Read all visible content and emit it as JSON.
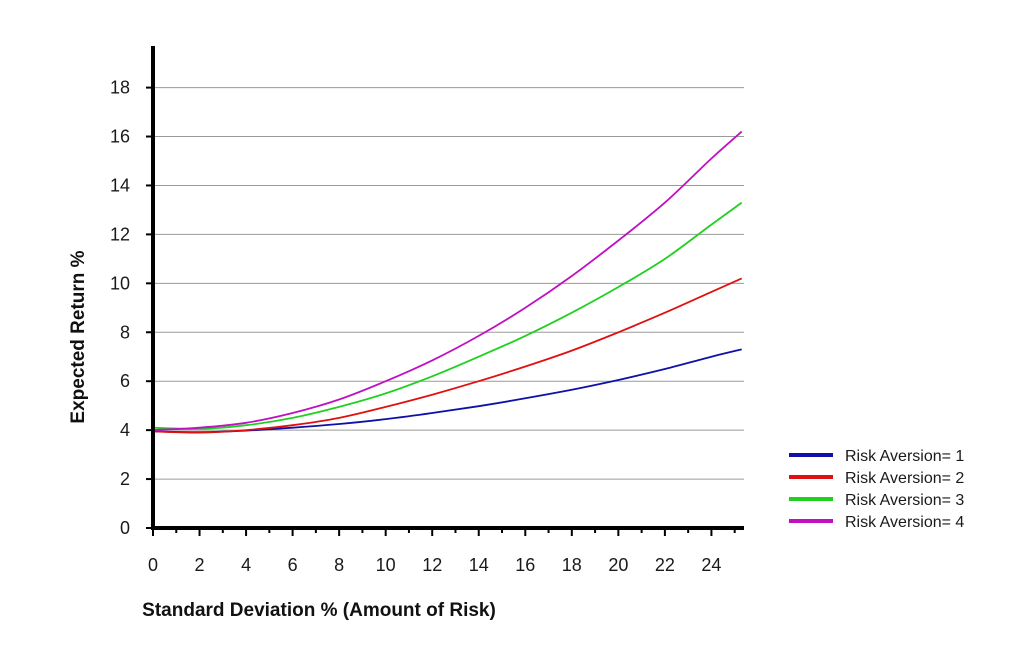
{
  "chart_data": {
    "type": "line",
    "title": "",
    "xlabel": "Standard Deviation % (Amount of Risk)",
    "ylabel": "Expected Return %",
    "xlim": [
      0,
      25.4
    ],
    "ylim": [
      0,
      19.7
    ],
    "xticks": [
      0,
      2,
      4,
      6,
      8,
      10,
      12,
      14,
      16,
      18,
      20,
      22,
      24
    ],
    "yticks": [
      0,
      2,
      4,
      6,
      8,
      10,
      12,
      14,
      16,
      18
    ],
    "grid": "horizontal",
    "legend_position": "right",
    "series": [
      {
        "name": "Risk Aversion= 1",
        "color": "#1010a8",
        "x": [
          0,
          2,
          4,
          6,
          8,
          10,
          12,
          14,
          16,
          18,
          20,
          22,
          24,
          25.3
        ],
        "y": [
          3.95,
          3.92,
          3.98,
          4.1,
          4.25,
          4.45,
          4.7,
          4.98,
          5.3,
          5.65,
          6.05,
          6.5,
          7.0,
          7.3
        ]
      },
      {
        "name": "Risk Aversion= 2",
        "color": "#e01010",
        "x": [
          0,
          2,
          4,
          6,
          8,
          10,
          12,
          14,
          16,
          18,
          20,
          22,
          24,
          25.3
        ],
        "y": [
          3.95,
          3.9,
          4.0,
          4.2,
          4.5,
          4.95,
          5.45,
          6.0,
          6.6,
          7.25,
          8.0,
          8.8,
          9.65,
          10.2
        ]
      },
      {
        "name": "Risk Aversion= 3",
        "color": "#20d020",
        "x": [
          0,
          2,
          4,
          6,
          8,
          10,
          12,
          14,
          16,
          18,
          20,
          22,
          24,
          25.3
        ],
        "y": [
          4.1,
          4.05,
          4.2,
          4.5,
          4.95,
          5.5,
          6.2,
          7.0,
          7.85,
          8.8,
          9.85,
          11.0,
          12.4,
          13.3
        ]
      },
      {
        "name": "Risk Aversion= 4",
        "color": "#c010c0",
        "x": [
          0,
          2,
          4,
          6,
          8,
          10,
          12,
          14,
          16,
          18,
          20,
          22,
          24,
          25.3
        ],
        "y": [
          4.0,
          4.1,
          4.3,
          4.7,
          5.25,
          6.0,
          6.85,
          7.85,
          9.0,
          10.3,
          11.75,
          13.3,
          15.1,
          16.2
        ]
      }
    ]
  }
}
